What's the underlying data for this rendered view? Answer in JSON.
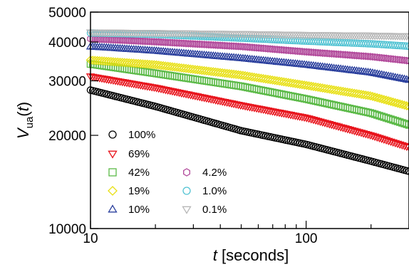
{
  "chart_data": {
    "type": "scatter",
    "title": "",
    "x_axis": {
      "scale": "log",
      "range": [
        10,
        300
      ],
      "label_italic": "t",
      "label_rest": " [seconds]",
      "ticks": [
        {
          "value": 10,
          "label": "10"
        },
        {
          "value": 100,
          "label": "100"
        }
      ]
    },
    "y_axis": {
      "scale": "log",
      "range": [
        10000,
        50000
      ],
      "label_main": "V",
      "label_sub": "ua",
      "label_open": "(",
      "label_var": "t",
      "label_close": ")",
      "ticks": [
        {
          "value": 10000,
          "label": "10000"
        },
        {
          "value": 20000,
          "label": "20000"
        },
        {
          "value": 30000,
          "label": "30000"
        },
        {
          "value": 40000,
          "label": "40000"
        },
        {
          "value": 50000,
          "label": "50000"
        }
      ]
    },
    "legend_position": "bottom-left",
    "series": [
      {
        "name": "100%",
        "marker": "circle",
        "color": "#000000",
        "points": [
          [
            10,
            28000
          ],
          [
            20,
            24800
          ],
          [
            50,
            20700
          ],
          [
            100,
            18700
          ],
          [
            200,
            16500
          ],
          [
            300,
            15300
          ]
        ]
      },
      {
        "name": "69%",
        "marker": "triangle-down",
        "color": "#e8141c",
        "points": [
          [
            10,
            31000
          ],
          [
            20,
            28500
          ],
          [
            50,
            25000
          ],
          [
            100,
            22800
          ],
          [
            200,
            20000
          ],
          [
            300,
            18300
          ]
        ]
      },
      {
        "name": "42%",
        "marker": "square",
        "color": "#5ab946",
        "points": [
          [
            10,
            34000
          ],
          [
            20,
            31700
          ],
          [
            50,
            28800
          ],
          [
            100,
            26200
          ],
          [
            200,
            23600
          ],
          [
            300,
            21600
          ]
        ]
      },
      {
        "name": "19%",
        "marker": "diamond",
        "color": "#e8e014",
        "points": [
          [
            10,
            35000
          ],
          [
            20,
            33800
          ],
          [
            50,
            31300
          ],
          [
            100,
            29000
          ],
          [
            200,
            26800
          ],
          [
            300,
            24800
          ]
        ]
      },
      {
        "name": "10%",
        "marker": "triangle-up",
        "color": "#2a3f9d",
        "points": [
          [
            10,
            38700
          ],
          [
            20,
            37500
          ],
          [
            50,
            35500
          ],
          [
            100,
            33800
          ],
          [
            200,
            31900
          ],
          [
            300,
            30200
          ]
        ]
      },
      {
        "name": "4.2%",
        "marker": "hexagon",
        "color": "#b1489a",
        "points": [
          [
            10,
            41000
          ],
          [
            20,
            40100
          ],
          [
            50,
            38700
          ],
          [
            100,
            37200
          ],
          [
            200,
            35900
          ],
          [
            300,
            34800
          ]
        ]
      },
      {
        "name": "1.0%",
        "marker": "circle",
        "color": "#52c3d3",
        "points": [
          [
            10,
            42800
          ],
          [
            20,
            42400
          ],
          [
            50,
            41200
          ],
          [
            100,
            40300
          ],
          [
            200,
            39500
          ],
          [
            300,
            38800
          ]
        ]
      },
      {
        "name": "0.1%",
        "marker": "triangle-down",
        "color": "#b7b7b7",
        "points": [
          [
            10,
            43000
          ],
          [
            20,
            42800
          ],
          [
            50,
            42500
          ],
          [
            100,
            42200
          ],
          [
            200,
            42000
          ],
          [
            300,
            41800
          ]
        ]
      }
    ]
  }
}
